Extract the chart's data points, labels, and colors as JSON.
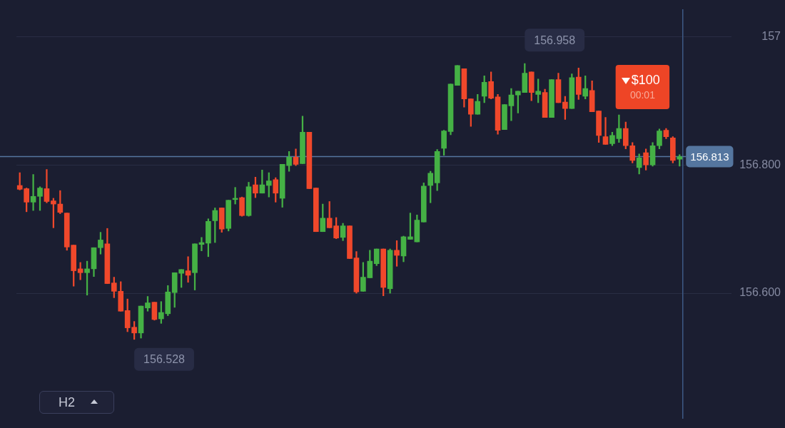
{
  "chart_data": {
    "type": "candlestick",
    "categories": [
      null,
      null,
      null,
      null,
      null,
      null,
      null,
      null,
      null,
      null,
      null,
      null,
      null,
      null,
      null,
      null,
      null,
      null,
      null,
      null,
      null,
      null,
      null,
      null,
      null,
      null,
      null,
      null,
      null,
      null,
      null,
      null,
      null,
      null,
      null,
      null,
      null,
      null,
      null,
      null,
      null,
      null,
      null,
      null,
      null,
      null,
      null,
      null,
      null,
      null,
      null,
      null,
      null,
      null,
      null,
      null,
      null,
      null,
      null,
      null,
      null,
      null,
      null,
      null,
      null,
      null,
      null,
      null,
      null,
      null,
      null,
      null,
      null,
      null,
      null,
      null,
      null,
      null,
      null,
      null,
      null,
      null,
      null,
      null,
      null,
      null,
      null,
      null,
      null,
      null,
      null,
      null,
      null,
      null,
      null,
      null,
      null,
      null,
      null
    ],
    "ohlc": [
      [
        156.768,
        156.788,
        156.761,
        156.762
      ],
      [
        156.763,
        156.764,
        156.727,
        156.742
      ],
      [
        156.742,
        156.785,
        156.729,
        156.751
      ],
      [
        156.751,
        156.766,
        156.729,
        156.764
      ],
      [
        156.763,
        156.793,
        156.741,
        156.743
      ],
      [
        156.744,
        156.748,
        156.702,
        156.739
      ],
      [
        156.739,
        156.76,
        156.724,
        156.726
      ],
      [
        156.725,
        156.725,
        156.667,
        156.672
      ],
      [
        156.675,
        156.675,
        156.611,
        156.635
      ],
      [
        156.638,
        156.648,
        156.621,
        156.632
      ],
      [
        156.632,
        156.65,
        156.597,
        156.638
      ],
      [
        156.638,
        156.671,
        156.626,
        156.671
      ],
      [
        156.671,
        156.695,
        156.661,
        156.683
      ],
      [
        156.677,
        156.701,
        156.615,
        156.615
      ],
      [
        156.616,
        156.625,
        156.593,
        156.603
      ],
      [
        156.603,
        156.618,
        156.572,
        156.572
      ],
      [
        156.573,
        156.591,
        156.54,
        156.546
      ],
      [
        156.547,
        156.556,
        156.528,
        156.538
      ],
      [
        156.538,
        156.58,
        156.53,
        156.58
      ],
      [
        156.577,
        156.595,
        156.572,
        156.585
      ],
      [
        156.586,
        156.586,
        156.558,
        156.559
      ],
      [
        156.56,
        156.587,
        156.553,
        156.57
      ],
      [
        156.568,
        156.612,
        156.565,
        156.602
      ],
      [
        156.601,
        156.632,
        156.578,
        156.632
      ],
      [
        156.631,
        156.637,
        156.609,
        156.637
      ],
      [
        156.635,
        156.657,
        156.617,
        156.628
      ],
      [
        156.632,
        156.677,
        156.605,
        156.677
      ],
      [
        156.676,
        156.687,
        156.666,
        156.679
      ],
      [
        156.678,
        156.716,
        156.657,
        156.712
      ],
      [
        156.713,
        156.733,
        156.679,
        156.729
      ],
      [
        156.733,
        156.733,
        156.695,
        156.7
      ],
      [
        156.701,
        156.745,
        156.697,
        156.745
      ],
      [
        156.746,
        156.765,
        156.739,
        156.748
      ],
      [
        156.749,
        156.75,
        156.72,
        156.721
      ],
      [
        156.721,
        156.773,
        156.72,
        156.766
      ],
      [
        156.769,
        156.781,
        156.749,
        156.756
      ],
      [
        156.756,
        156.792,
        156.756,
        156.769
      ],
      [
        156.768,
        156.788,
        156.75,
        156.775
      ],
      [
        156.777,
        156.78,
        156.742,
        156.756
      ],
      [
        156.748,
        156.801,
        156.734,
        156.801
      ],
      [
        156.799,
        156.821,
        156.79,
        156.812
      ],
      [
        156.812,
        156.825,
        156.799,
        156.801
      ],
      [
        156.802,
        156.876,
        156.802,
        156.851
      ],
      [
        156.851,
        156.851,
        156.763,
        156.763
      ],
      [
        156.764,
        156.764,
        156.696,
        156.696
      ],
      [
        156.696,
        156.739,
        156.696,
        156.717
      ],
      [
        156.717,
        156.743,
        156.702,
        156.702
      ],
      [
        156.705,
        156.718,
        156.685,
        156.686
      ],
      [
        156.687,
        156.709,
        156.682,
        156.705
      ],
      [
        156.705,
        156.705,
        156.654,
        156.654
      ],
      [
        156.655,
        156.665,
        156.6,
        156.602
      ],
      [
        156.603,
        156.648,
        156.603,
        156.625
      ],
      [
        156.624,
        156.667,
        156.624,
        156.65
      ],
      [
        156.646,
        156.669,
        156.643,
        156.669
      ],
      [
        156.669,
        156.669,
        156.596,
        156.609
      ],
      [
        156.607,
        156.669,
        156.6,
        156.667
      ],
      [
        156.667,
        156.682,
        156.642,
        156.659
      ],
      [
        156.658,
        156.689,
        156.649,
        156.688
      ],
      [
        156.684,
        156.725,
        156.684,
        156.688
      ],
      [
        156.68,
        156.722,
        156.68,
        156.714
      ],
      [
        156.711,
        156.772,
        156.711,
        156.767
      ],
      [
        156.768,
        156.79,
        156.741,
        156.787
      ],
      [
        156.772,
        156.824,
        156.76,
        156.821
      ],
      [
        156.826,
        156.854,
        156.815,
        156.853
      ],
      [
        156.852,
        156.926,
        156.847,
        156.926
      ],
      [
        156.924,
        156.955,
        156.924,
        156.955
      ],
      [
        156.95,
        156.95,
        156.89,
        156.903
      ],
      [
        156.903,
        156.903,
        156.86,
        156.879
      ],
      [
        156.879,
        156.91,
        156.879,
        156.899
      ],
      [
        156.907,
        156.939,
        156.897,
        156.929
      ],
      [
        156.93,
        156.945,
        156.903,
        156.904
      ],
      [
        156.906,
        156.91,
        156.848,
        156.854
      ],
      [
        156.855,
        156.894,
        156.855,
        156.894
      ],
      [
        156.892,
        156.919,
        156.869,
        156.909
      ],
      [
        156.909,
        156.915,
        156.881,
        156.915
      ],
      [
        156.913,
        156.958,
        156.913,
        156.943
      ],
      [
        156.945,
        156.945,
        156.9,
        156.913
      ],
      [
        156.91,
        156.934,
        156.897,
        156.915
      ],
      [
        156.913,
        156.918,
        156.874,
        156.874
      ],
      [
        156.874,
        156.933,
        156.874,
        156.933
      ],
      [
        156.933,
        156.943,
        156.897,
        156.897
      ],
      [
        156.898,
        156.907,
        156.871,
        156.888
      ],
      [
        156.888,
        156.942,
        156.888,
        156.936
      ],
      [
        156.937,
        156.951,
        156.902,
        156.91
      ],
      [
        156.907,
        156.939,
        156.903,
        156.919
      ],
      [
        156.916,
        156.931,
        156.883,
        156.883
      ],
      [
        156.884,
        156.884,
        156.835,
        156.846
      ],
      [
        156.844,
        156.874,
        156.832,
        156.832
      ],
      [
        156.833,
        156.851,
        156.83,
        156.846
      ],
      [
        156.841,
        156.878,
        156.835,
        156.857
      ],
      [
        156.857,
        156.867,
        156.825,
        156.83
      ],
      [
        156.83,
        156.835,
        156.803,
        156.807
      ],
      [
        156.796,
        156.817,
        156.786,
        156.811
      ],
      [
        156.819,
        156.825,
        156.792,
        156.8
      ],
      [
        156.8,
        156.835,
        156.798,
        156.83
      ],
      [
        156.83,
        156.856,
        156.825,
        156.853
      ],
      [
        156.854,
        156.857,
        156.841,
        156.844
      ],
      [
        156.842,
        156.844,
        156.803,
        156.807
      ],
      [
        156.809,
        156.816,
        156.798,
        156.813
      ]
    ],
    "colors": [
      "#f0482b",
      "#f0482b",
      "#45b145",
      "#45b145",
      "#f0482b",
      "#f0482b",
      "#f0482b",
      "#f0482b",
      "#f0482b",
      "#f0482b",
      "#45b145",
      "#45b145",
      "#45b145",
      "#f0482b",
      "#f0482b",
      "#f0482b",
      "#f0482b",
      "#f0482b",
      "#45b145",
      "#45b145",
      "#f0482b",
      "#45b145",
      "#45b145",
      "#45b145",
      "#45b145",
      "#f0482b",
      "#45b145",
      "#45b145",
      "#45b145",
      "#45b145",
      "#f0482b",
      "#45b145",
      "#45b145",
      "#f0482b",
      "#45b145",
      "#f0482b",
      "#45b145",
      "#45b145",
      "#f0482b",
      "#45b145",
      "#45b145",
      "#f0482b",
      "#45b145",
      "#f0482b",
      "#f0482b",
      "#45b145",
      "#f0482b",
      "#f0482b",
      "#45b145",
      "#f0482b",
      "#f0482b",
      "#45b145",
      "#45b145",
      "#45b145",
      "#f0482b",
      "#45b145",
      "#f0482b",
      "#45b145",
      "#45b145",
      "#45b145",
      "#45b145",
      "#45b145",
      "#45b145",
      "#45b145",
      "#45b145",
      "#45b145",
      "#f0482b",
      "#f0482b",
      "#45b145",
      "#45b145",
      "#f0482b",
      "#f0482b",
      "#45b145",
      "#45b145",
      "#45b145",
      "#45b145",
      "#f0482b",
      "#45b145",
      "#f0482b",
      "#45b145",
      "#f0482b",
      "#f0482b",
      "#45b145",
      "#f0482b",
      "#45b145",
      "#f0482b",
      "#f0482b",
      "#f0482b",
      "#45b145",
      "#45b145",
      "#f0482b",
      "#f0482b",
      "#45b145",
      "#f0482b",
      "#45b145",
      "#45b145",
      "#f0482b",
      "#f0482b",
      "#45b145"
    ],
    "ylim": [
      156.405,
      157.042
    ],
    "yticks": [
      157,
      {
        "value": 156.8,
        "label": "156.800"
      },
      {
        "value": 156.6,
        "label": "156.600"
      }
    ],
    "grid": "y",
    "ref_lines": [
      {
        "axis": "y",
        "value": 156.813,
        "label": "156.813",
        "color": "#55769f"
      }
    ],
    "annotations": [
      "156.958",
      "156.528",
      "$100",
      "00:01",
      "H2"
    ]
  }
}
